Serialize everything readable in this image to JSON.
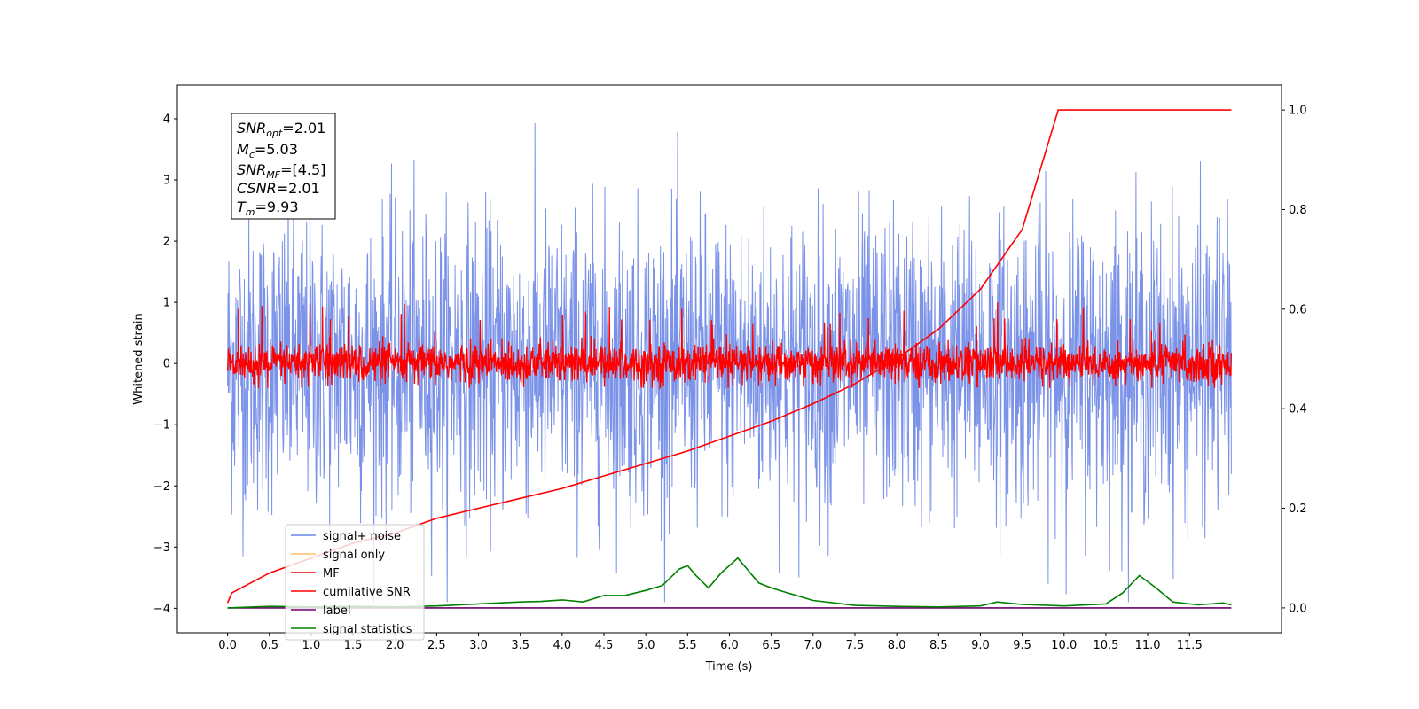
{
  "chart_data": {
    "type": "line",
    "xlabel": "Time (s)",
    "ylabel": "Whitened strain",
    "xlim": [
      -0.6,
      12.6
    ],
    "ylim": [
      -4.4,
      4.55
    ],
    "ylim_right": [
      -0.05,
      1.05
    ],
    "x_ticks": [
      "0.0",
      "0.5",
      "1.0",
      "1.5",
      "2.0",
      "2.5",
      "3.0",
      "3.5",
      "4.0",
      "4.5",
      "5.0",
      "5.5",
      "6.0",
      "6.5",
      "7.0",
      "7.5",
      "8.0",
      "8.5",
      "9.0",
      "9.5",
      "10.0",
      "10.5",
      "11.0",
      "11.5"
    ],
    "y_ticks_left": [
      "4",
      "3",
      "2",
      "1",
      "0",
      "−1",
      "−2",
      "−3",
      "−4"
    ],
    "y_tick_values_left": [
      4,
      3,
      2,
      1,
      0,
      -1,
      -2,
      -3,
      -4
    ],
    "y_ticks_right": [
      "1.0",
      "0.8",
      "0.6",
      "0.4",
      "0.2",
      "0.0"
    ],
    "y_tick_values_right": [
      1.0,
      0.8,
      0.6,
      0.4,
      0.2,
      0.0
    ],
    "legend_position": "bottom-left",
    "series": [
      {
        "name": "signal+ noise",
        "color": "#6b86e6",
        "axis": "left",
        "description_values": {
          "x_range": [
            0,
            12
          ],
          "spread": 1.2,
          "max": 4.2,
          "min": -3.9
        }
      },
      {
        "name": "signal only",
        "color": "#ffbf66",
        "axis": "left"
      },
      {
        "name": "MF",
        "color": "#ff0000",
        "axis": "left",
        "description_values": {
          "x_range": [
            0,
            12
          ],
          "spread": 0.3,
          "max": 1.0,
          "min": -0.4
        }
      },
      {
        "name": "cumilative SNR",
        "color": "#ff0000",
        "axis": "right",
        "x": [
          0.0,
          0.05,
          0.5,
          1.0,
          1.5,
          2.0,
          2.5,
          3.0,
          3.5,
          4.0,
          4.5,
          5.0,
          5.5,
          6.0,
          6.5,
          7.0,
          7.5,
          8.0,
          8.5,
          9.0,
          9.5,
          9.93,
          12.0
        ],
        "values": [
          0.01,
          0.03,
          0.07,
          0.1,
          0.13,
          0.15,
          0.18,
          0.2,
          0.22,
          0.24,
          0.265,
          0.29,
          0.315,
          0.345,
          0.375,
          0.41,
          0.45,
          0.5,
          0.56,
          0.64,
          0.76,
          1.0,
          1.0
        ]
      },
      {
        "name": "label",
        "color": "#6a006a",
        "axis": "right",
        "x": [
          0.0,
          12.0
        ],
        "values": [
          0.0,
          0.0
        ]
      },
      {
        "name": "signal statistics",
        "color": "#008000",
        "axis": "right",
        "x": [
          0.0,
          0.5,
          1.0,
          1.5,
          2.0,
          2.5,
          3.0,
          3.25,
          3.5,
          3.75,
          4.0,
          4.25,
          4.5,
          4.75,
          5.0,
          5.2,
          5.4,
          5.5,
          5.6,
          5.75,
          5.9,
          6.1,
          6.35,
          6.5,
          6.7,
          7.0,
          7.5,
          8.0,
          8.5,
          9.0,
          9.2,
          9.5,
          10.0,
          10.5,
          10.7,
          10.9,
          11.1,
          11.3,
          11.6,
          11.9,
          12.0
        ],
        "values": [
          0.0,
          0.003,
          0.002,
          0.003,
          0.002,
          0.004,
          0.008,
          0.01,
          0.012,
          0.013,
          0.016,
          0.012,
          0.025,
          0.025,
          0.035,
          0.045,
          0.078,
          0.085,
          0.065,
          0.04,
          0.07,
          0.1,
          0.05,
          0.04,
          0.03,
          0.015,
          0.005,
          0.003,
          0.002,
          0.004,
          0.012,
          0.007,
          0.004,
          0.008,
          0.03,
          0.065,
          0.04,
          0.012,
          0.006,
          0.01,
          0.006
        ]
      }
    ],
    "annotation": {
      "lines": [
        {
          "base": "SNR",
          "sub": "opt",
          "value": "=2.01"
        },
        {
          "base": "M",
          "sub": "c",
          "value": "=5.03"
        },
        {
          "base": "SNR",
          "sub": "MF",
          "value": "=[4.5]"
        },
        {
          "base": "CSNR",
          "sub": "",
          "value": "=2.01"
        },
        {
          "base": "T",
          "sub": "m",
          "value": "=9.93"
        }
      ]
    }
  }
}
